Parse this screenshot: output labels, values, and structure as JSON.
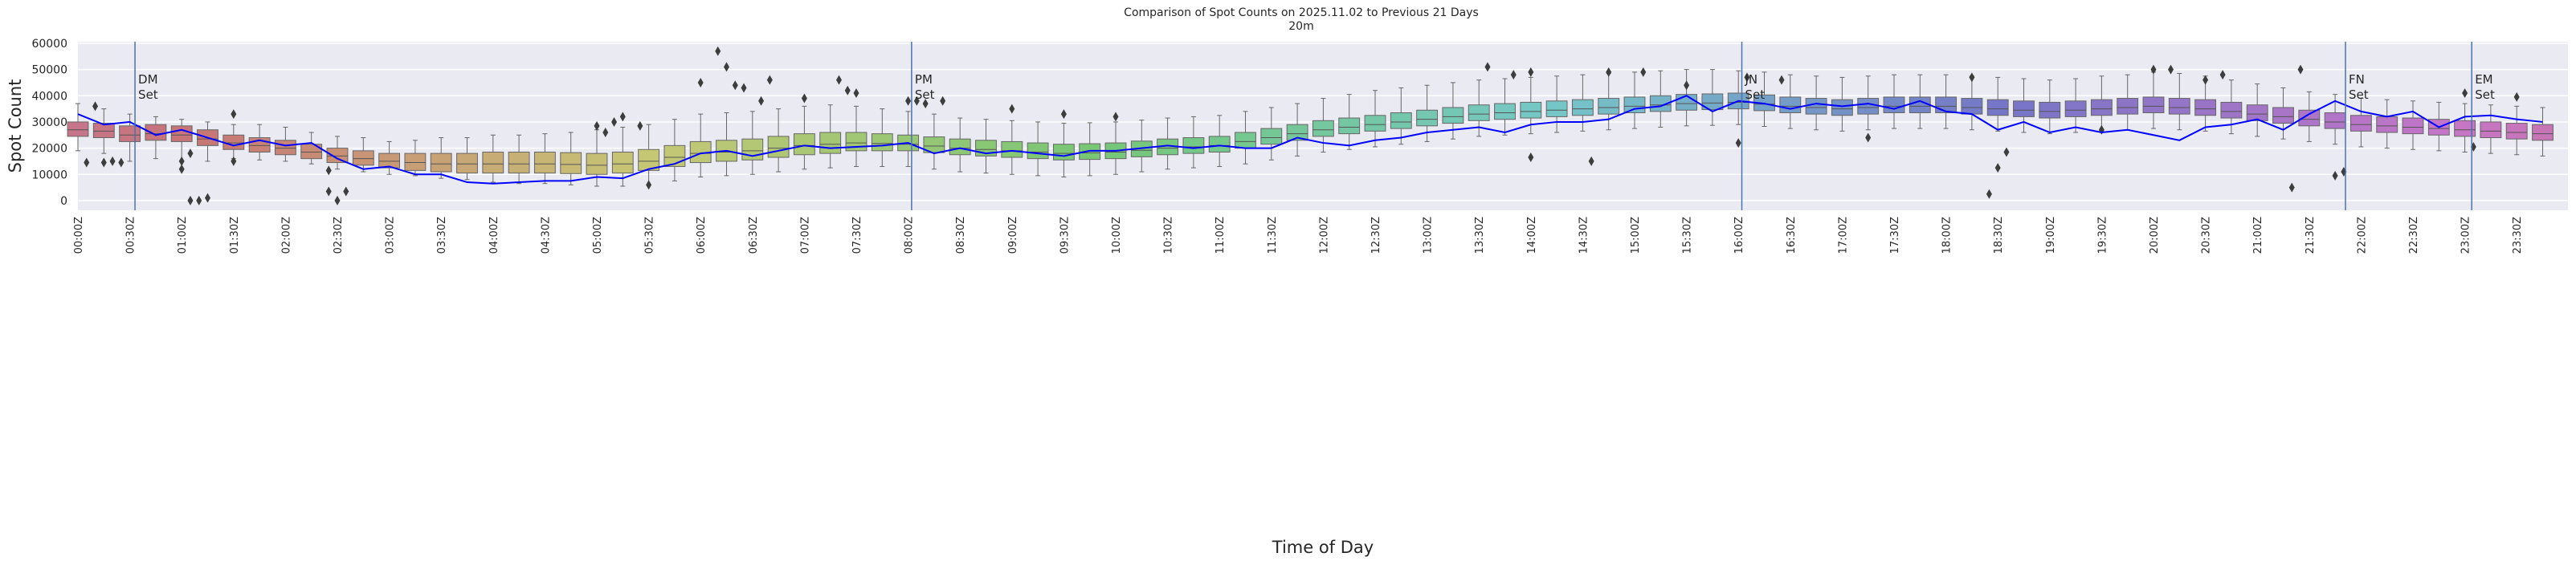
{
  "chart_data": {
    "type": "box",
    "title": "Comparison of Spot Counts on 2025.11.02 to Previous 21 Days",
    "subtitle": "20m",
    "xlabel": "Time of Day",
    "ylabel": "Spot Count",
    "ylim": [
      -3700,
      60600
    ],
    "yticks": [
      0,
      10000,
      20000,
      30000,
      40000,
      50000,
      60000
    ],
    "grid": true,
    "background": "#eaeaf2",
    "line_color": "#0000ff",
    "marker_line_color": "#4c72b0",
    "xtick_labels": [
      "00:00Z",
      "00:30Z",
      "01:00Z",
      "01:30Z",
      "02:00Z",
      "02:30Z",
      "03:00Z",
      "03:30Z",
      "04:00Z",
      "04:30Z",
      "05:00Z",
      "05:30Z",
      "06:00Z",
      "06:30Z",
      "07:00Z",
      "07:30Z",
      "08:00Z",
      "08:30Z",
      "09:00Z",
      "09:30Z",
      "10:00Z",
      "10:30Z",
      "11:00Z",
      "11:30Z",
      "12:00Z",
      "12:30Z",
      "13:00Z",
      "13:30Z",
      "14:00Z",
      "14:30Z",
      "15:00Z",
      "15:30Z",
      "16:00Z",
      "16:30Z",
      "17:00Z",
      "17:30Z",
      "18:00Z",
      "18:30Z",
      "19:00Z",
      "19:30Z",
      "20:00Z",
      "20:30Z",
      "21:00Z",
      "21:30Z",
      "22:00Z",
      "22:30Z",
      "23:00Z",
      "23:30Z"
    ],
    "box_interval_minutes": 15,
    "boxes": {
      "median": [
        27000,
        26500,
        25000,
        25500,
        25000,
        23500,
        22000,
        21000,
        20000,
        18500,
        17000,
        16000,
        15000,
        14500,
        14000,
        14000,
        14000,
        14000,
        14000,
        13800,
        13500,
        14000,
        15000,
        16500,
        18000,
        18500,
        19000,
        20000,
        21000,
        21500,
        22000,
        21800,
        21500,
        20800,
        20000,
        19500,
        19000,
        18500,
        18000,
        18200,
        18500,
        19200,
        20000,
        20500,
        21000,
        22500,
        24000,
        25500,
        27000,
        28000,
        29000,
        30000,
        31000,
        32000,
        33000,
        33500,
        34000,
        34500,
        35000,
        35500,
        36000,
        36500,
        37000,
        37200,
        37500,
        36800,
        36000,
        35500,
        35000,
        35500,
        36000,
        36000,
        36000,
        35500,
        35000,
        34500,
        34000,
        34500,
        35000,
        35500,
        36000,
        35500,
        35000,
        34000,
        33000,
        32000,
        31000,
        30000,
        29000,
        28500,
        28000,
        27500,
        27000,
        26500,
        26000,
        25500
      ],
      "q1": [
        24500,
        24000,
        22500,
        23000,
        22500,
        21000,
        19500,
        18500,
        17500,
        16000,
        14500,
        13500,
        12500,
        11500,
        11000,
        10500,
        10500,
        10500,
        10500,
        10300,
        10000,
        10500,
        11500,
        13000,
        14500,
        15000,
        15500,
        16500,
        17500,
        18000,
        19000,
        19000,
        19000,
        18300,
        17500,
        17000,
        16500,
        16000,
        15500,
        15700,
        16000,
        16700,
        17500,
        18000,
        18500,
        20000,
        21500,
        23000,
        24500,
        25500,
        26500,
        27500,
        28500,
        29500,
        30500,
        31000,
        31500,
        32000,
        32500,
        33000,
        33500,
        34000,
        34500,
        34700,
        35000,
        34300,
        33500,
        33000,
        32500,
        33000,
        33500,
        33500,
        33500,
        33000,
        32500,
        32000,
        31500,
        32000,
        32500,
        33000,
        33500,
        33000,
        32500,
        31500,
        30500,
        29500,
        28500,
        27500,
        26500,
        26000,
        25500,
        25000,
        24500,
        24000,
        23500,
        23000
      ],
      "q3": [
        30000,
        29500,
        28500,
        29000,
        28500,
        27000,
        25000,
        24000,
        23000,
        21500,
        20000,
        19000,
        18000,
        18000,
        18000,
        18000,
        18500,
        18500,
        18500,
        18300,
        18000,
        18500,
        19500,
        21000,
        22500,
        23000,
        23500,
        24500,
        25500,
        26000,
        26000,
        25500,
        25000,
        24300,
        23500,
        23000,
        22500,
        22000,
        21500,
        21700,
        22000,
        22700,
        23500,
        24000,
        24500,
        26000,
        27500,
        29000,
        30500,
        31500,
        32500,
        33500,
        34500,
        35500,
        36500,
        37000,
        37500,
        38000,
        38500,
        39000,
        39500,
        40000,
        40500,
        40700,
        41000,
        40300,
        39500,
        39000,
        38500,
        39000,
        39500,
        39500,
        39500,
        39000,
        38500,
        38000,
        37500,
        38000,
        38500,
        39000,
        39500,
        39000,
        38500,
        37500,
        36500,
        35500,
        34500,
        33500,
        32500,
        32000,
        31500,
        31000,
        30500,
        30000,
        29500,
        29000
      ],
      "whisker_low": [
        19000,
        18000,
        15000,
        16000,
        15000,
        15000,
        16000,
        15500,
        15000,
        14000,
        12000,
        11000,
        10000,
        9500,
        8500,
        8000,
        7000,
        6500,
        6500,
        6000,
        5500,
        5500,
        6000,
        7500,
        9000,
        9500,
        10000,
        11000,
        12000,
        12500,
        13000,
        13000,
        13000,
        12000,
        11000,
        10500,
        10000,
        9500,
        9000,
        9500,
        10000,
        11000,
        12000,
        12500,
        13000,
        14000,
        15500,
        17000,
        18500,
        19500,
        20500,
        21500,
        22500,
        23500,
        24500,
        25000,
        25500,
        26000,
        26500,
        27000,
        27500,
        28000,
        28500,
        28700,
        29000,
        28300,
        27500,
        27000,
        26500,
        27000,
        27500,
        27500,
        27500,
        27000,
        26500,
        26000,
        25500,
        26000,
        26500,
        27000,
        27500,
        27000,
        26500,
        25500,
        24500,
        23500,
        22500,
        21500,
        20500,
        20000,
        19500,
        19000,
        18500,
        18000,
        17500,
        17000
      ],
      "whisker_high": [
        37000,
        35000,
        33000,
        32000,
        31000,
        30000,
        29000,
        29000,
        28000,
        26000,
        24500,
        24000,
        22500,
        23000,
        24000,
        24000,
        25000,
        25000,
        25500,
        26000,
        27000,
        28000,
        29000,
        31000,
        33000,
        33500,
        34000,
        35000,
        36000,
        36500,
        36000,
        35000,
        34000,
        33000,
        31500,
        31000,
        30500,
        30000,
        29500,
        29700,
        30000,
        30700,
        31500,
        32000,
        32500,
        34000,
        35500,
        37000,
        39000,
        40500,
        42000,
        43000,
        44000,
        45000,
        46000,
        46500,
        47000,
        47500,
        48000,
        48500,
        49000,
        49500,
        50000,
        50000,
        49500,
        49000,
        48000,
        47500,
        47000,
        47500,
        48000,
        48000,
        48000,
        47500,
        47000,
        46500,
        46000,
        46500,
        47500,
        48000,
        49000,
        48500,
        47500,
        46000,
        44500,
        43000,
        41500,
        40500,
        39000,
        38500,
        38000,
        37500,
        37000,
        36500,
        36000,
        35500
      ]
    },
    "current_day": {
      "values": [
        33000,
        29000,
        30000,
        25000,
        27000,
        24000,
        21000,
        23000,
        21000,
        22000,
        16000,
        12000,
        13000,
        10000,
        10000,
        7000,
        6500,
        7000,
        7500,
        7500,
        9000,
        8500,
        12000,
        14000,
        18000,
        19000,
        17000,
        19000,
        21000,
        20000,
        20500,
        21000,
        22000,
        18000,
        20000,
        18000,
        19000,
        18000,
        17000,
        19000,
        19000,
        20000,
        21000,
        20000,
        21000,
        20000,
        20000,
        24000,
        22000,
        21000,
        23000,
        24000,
        26000,
        27000,
        28000,
        26000,
        29000,
        30000,
        30000,
        31000,
        35000,
        36000,
        40000,
        34000,
        38000,
        37000,
        35000,
        37000,
        36000,
        37000,
        35000,
        38000,
        34000,
        33000,
        27000,
        30000,
        26000,
        28000,
        26000,
        27000,
        25000,
        23000,
        28000,
        29000,
        31000,
        27000,
        33000,
        38000,
        34000,
        32000,
        34000,
        28000,
        32000,
        32500,
        31000,
        30000
      ]
    },
    "outliers": [
      [
        "00:05",
        14500
      ],
      [
        "00:10",
        36000
      ],
      [
        "00:15",
        14500
      ],
      [
        "00:20",
        15000
      ],
      [
        "00:25",
        14500
      ],
      [
        "01:00",
        15000
      ],
      [
        "01:00",
        12000
      ],
      [
        "01:05",
        0
      ],
      [
        "01:05",
        18000
      ],
      [
        "01:10",
        0
      ],
      [
        "01:15",
        1000
      ],
      [
        "01:30",
        33000
      ],
      [
        "01:30",
        15000
      ],
      [
        "02:25",
        3500
      ],
      [
        "02:25",
        11500
      ],
      [
        "02:30",
        0
      ],
      [
        "02:35",
        3500
      ],
      [
        "05:00",
        28500
      ],
      [
        "05:05",
        26000
      ],
      [
        "05:10",
        30000
      ],
      [
        "05:15",
        32000
      ],
      [
        "05:25",
        28500
      ],
      [
        "05:30",
        6000
      ],
      [
        "06:00",
        45000
      ],
      [
        "06:10",
        57000
      ],
      [
        "06:15",
        51000
      ],
      [
        "06:20",
        44000
      ],
      [
        "06:25",
        43000
      ],
      [
        "06:35",
        38000
      ],
      [
        "06:40",
        46000
      ],
      [
        "07:00",
        39000
      ],
      [
        "07:20",
        46000
      ],
      [
        "07:25",
        42000
      ],
      [
        "07:30",
        41000
      ],
      [
        "08:00",
        38000
      ],
      [
        "08:05",
        38000
      ],
      [
        "08:10",
        37000
      ],
      [
        "08:20",
        38000
      ],
      [
        "09:00",
        35000
      ],
      [
        "09:30",
        33000
      ],
      [
        "10:00",
        32000
      ],
      [
        "13:35",
        51000
      ],
      [
        "13:50",
        48000
      ],
      [
        "14:00",
        49000
      ],
      [
        "14:00",
        16500
      ],
      [
        "14:35",
        15000
      ],
      [
        "14:45",
        49000
      ],
      [
        "15:05",
        49000
      ],
      [
        "15:30",
        44000
      ],
      [
        "16:00",
        22000
      ],
      [
        "16:05",
        47000
      ],
      [
        "16:25",
        46000
      ],
      [
        "17:15",
        24000
      ],
      [
        "18:15",
        47000
      ],
      [
        "18:25",
        2500
      ],
      [
        "18:30",
        12500
      ],
      [
        "18:35",
        18500
      ],
      [
        "19:30",
        27000
      ],
      [
        "20:00",
        50000
      ],
      [
        "20:10",
        50000
      ],
      [
        "20:30",
        46000
      ],
      [
        "20:40",
        48000
      ],
      [
        "21:20",
        5000
      ],
      [
        "21:25",
        50000
      ],
      [
        "21:45",
        9500
      ],
      [
        "21:50",
        11000
      ],
      [
        "23:00",
        41000
      ],
      [
        "23:05",
        20500
      ],
      [
        "23:30",
        39500
      ]
    ],
    "markers": [
      {
        "time": "00:33",
        "label_line1": "DM",
        "label_line2": "Set"
      },
      {
        "time": "08:02",
        "label_line1": "PM",
        "label_line2": "Set"
      },
      {
        "time": "16:02",
        "label_line1": "JN",
        "label_line2": "Set"
      },
      {
        "time": "21:51",
        "label_line1": "FN",
        "label_line2": "Set"
      },
      {
        "time": "23:04",
        "label_line1": "EM",
        "label_line2": "Set"
      }
    ]
  }
}
